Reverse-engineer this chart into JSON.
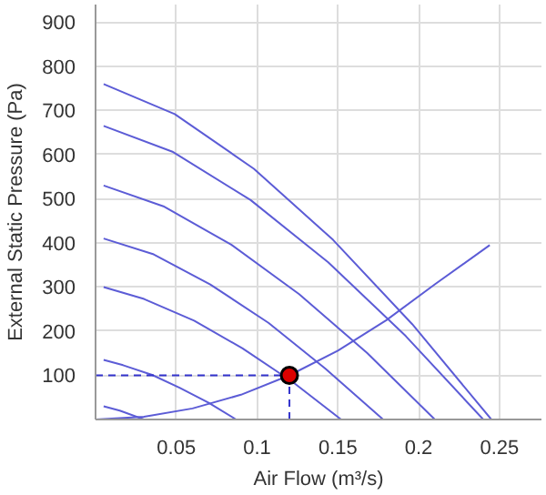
{
  "chart_data": {
    "type": "line",
    "xlabel": "Air Flow (m³/s)",
    "ylabel": "External Static Pressure (Pa)",
    "xlim": [
      0,
      0.276
    ],
    "ylim": [
      0,
      940
    ],
    "xticks": [
      0.05,
      0.1,
      0.15,
      0.2,
      0.25
    ],
    "yticks": [
      100,
      200,
      300,
      400,
      500,
      600,
      700,
      800,
      900
    ],
    "grid": true,
    "marker": "none",
    "line_style": "solid",
    "series": [
      {
        "color": "#5c5cd6",
        "x": [
          0.005,
          0.049,
          0.098,
          0.147,
          0.196,
          0.245
        ],
        "values": [
          760,
          692,
          568,
          407,
          216,
          0
        ]
      },
      {
        "color": "#5c5cd6",
        "x": [
          0.005,
          0.048,
          0.096,
          0.144,
          0.192,
          0.24
        ],
        "values": [
          665,
          606,
          497,
          356,
          189,
          0
        ]
      },
      {
        "color": "#5c5cd6",
        "x": [
          0.005,
          0.042,
          0.084,
          0.126,
          0.168,
          0.21
        ],
        "values": [
          530,
          483,
          396,
          284,
          151,
          0
        ]
      },
      {
        "color": "#5c5cd6",
        "x": [
          0.005,
          0.036,
          0.071,
          0.107,
          0.142,
          0.178
        ],
        "values": [
          410,
          374,
          306,
          219,
          116,
          0
        ]
      },
      {
        "color": "#5c5cd6",
        "x": [
          0.005,
          0.03,
          0.061,
          0.091,
          0.122,
          0.152
        ],
        "values": [
          300,
          273,
          224,
          161,
          85,
          0
        ]
      },
      {
        "color": "#5c5cd6",
        "x": [
          0.005,
          0.017,
          0.035,
          0.052,
          0.07,
          0.087
        ],
        "values": [
          135,
          123,
          101,
          72,
          38,
          0
        ]
      },
      {
        "color": "#5c5cd6",
        "x": [
          0.005,
          0.015,
          0.03
        ],
        "values": [
          30,
          20,
          0
        ]
      },
      {
        "color": "#5c5cd6",
        "x": [
          0,
          0.03,
          0.06,
          0.09,
          0.12,
          0.15,
          0.18,
          0.21,
          0.244
        ],
        "values": [
          0,
          6,
          25,
          56,
          100,
          156,
          225,
          306,
          395
        ]
      },
      {
        "color": "#3333cc",
        "line_style": "dashed",
        "x": [
          0,
          0.12
        ],
        "values": [
          100,
          100
        ]
      },
      {
        "color": "#3333cc",
        "line_style": "dashed",
        "x": [
          0.12,
          0.12
        ],
        "values": [
          0,
          100
        ]
      },
      {
        "type": "scatter",
        "marker": "circle",
        "color": "#dd0000",
        "x": [
          0.12
        ],
        "values": [
          100
        ]
      }
    ]
  }
}
